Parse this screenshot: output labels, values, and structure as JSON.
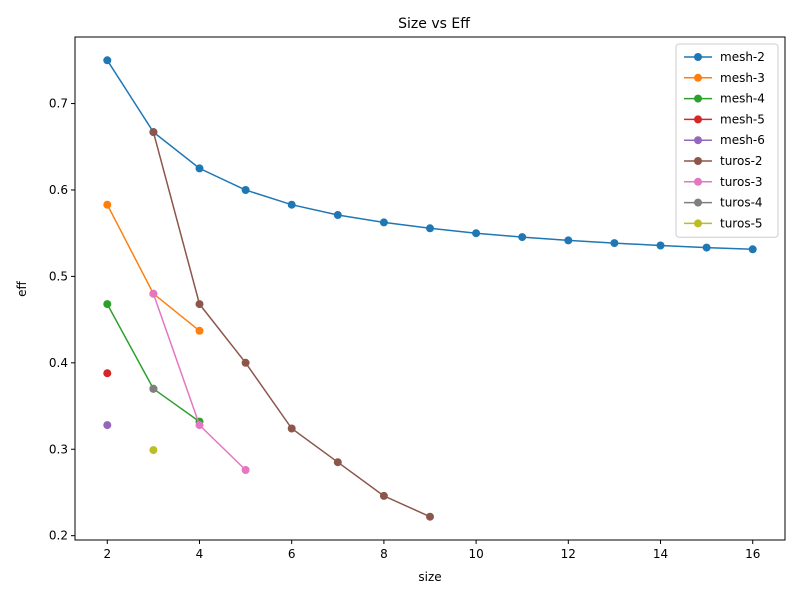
{
  "chart_data": {
    "type": "line",
    "title": "Size vs Eff",
    "xlabel": "size",
    "ylabel": "eff",
    "xlim": [
      1.3,
      16.7
    ],
    "ylim": [
      0.195,
      0.777
    ],
    "xticks": [
      2,
      4,
      6,
      8,
      10,
      12,
      14,
      16
    ],
    "yticks": [
      0.2,
      0.3,
      0.4,
      0.5,
      0.6,
      0.7
    ],
    "grid": false,
    "legend_position": "top-right",
    "series": [
      {
        "name": "mesh-2",
        "color": "#1f77b4",
        "x": [
          2,
          3,
          4,
          5,
          6,
          7,
          8,
          9,
          10,
          11,
          12,
          13,
          14,
          15,
          16
        ],
        "y": [
          0.75,
          0.667,
          0.625,
          0.6,
          0.583,
          0.571,
          0.5625,
          0.5556,
          0.55,
          0.5455,
          0.5417,
          0.5385,
          0.5357,
          0.5333,
          0.5313
        ]
      },
      {
        "name": "mesh-3",
        "color": "#ff7f0e",
        "x": [
          2,
          3,
          4
        ],
        "y": [
          0.583,
          0.48,
          0.437
        ]
      },
      {
        "name": "mesh-4",
        "color": "#2ca02c",
        "x": [
          2,
          3,
          4
        ],
        "y": [
          0.468,
          0.37,
          0.332
        ]
      },
      {
        "name": "mesh-5",
        "color": "#d62728",
        "x": [
          2
        ],
        "y": [
          0.388
        ]
      },
      {
        "name": "mesh-6",
        "color": "#9467bd",
        "x": [
          2
        ],
        "y": [
          0.328
        ]
      },
      {
        "name": "turos-2",
        "color": "#8c564b",
        "x": [
          3,
          4,
          5,
          6,
          7,
          8,
          9
        ],
        "y": [
          0.667,
          0.468,
          0.4,
          0.324,
          0.285,
          0.246,
          0.222
        ]
      },
      {
        "name": "turos-3",
        "color": "#e377c2",
        "x": [
          3,
          4,
          5
        ],
        "y": [
          0.48,
          0.328,
          0.276
        ]
      },
      {
        "name": "turos-4",
        "color": "#7f7f7f",
        "x": [
          3
        ],
        "y": [
          0.37
        ]
      },
      {
        "name": "turos-5",
        "color": "#bcbd22",
        "x": [
          3
        ],
        "y": [
          0.299
        ]
      }
    ]
  }
}
